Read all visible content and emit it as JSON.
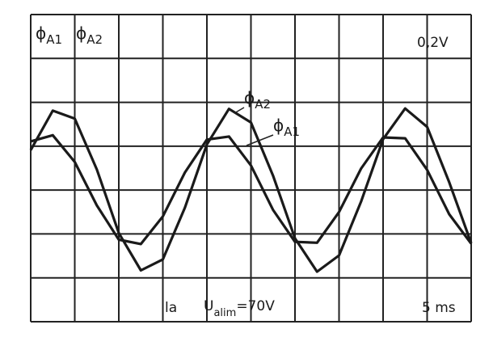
{
  "chart_data": {
    "type": "line",
    "x": [
      0,
      0.5,
      1,
      1.5,
      2,
      2.5,
      3,
      3.5,
      4,
      4.5,
      5,
      5.5,
      6,
      6.5,
      7,
      7.5,
      8,
      8.5,
      9,
      9.5,
      10
    ],
    "xlim": [
      0,
      10
    ],
    "ylim": [
      0,
      7
    ],
    "series": [
      {
        "name": "ϕ",
        "subscript": "A1",
        "color": "#1a1a1a",
        "values": [
          4.11,
          4.25,
          3.64,
          2.65,
          1.87,
          1.77,
          2.4,
          3.4,
          4.15,
          4.22,
          3.56,
          2.55,
          1.82,
          1.8,
          2.5,
          3.49,
          4.2,
          4.18,
          3.46,
          2.45,
          1.78
        ]
      },
      {
        "name": "ϕ",
        "subscript": "A2",
        "color": "#1a1a1a",
        "values": [
          3.91,
          4.81,
          4.63,
          3.47,
          2.02,
          1.17,
          1.42,
          2.6,
          4.04,
          4.85,
          4.54,
          3.33,
          1.9,
          1.14,
          1.51,
          2.74,
          4.16,
          4.86,
          4.44,
          3.18,
          1.79
        ]
      }
    ],
    "annotations": [
      [
        {
          "text": "0,2V"
        }
      ],
      [
        {
          "text": "la"
        }
      ],
      [
        {
          "text": "U"
        },
        {
          "text": "alim",
          "sub": true
        },
        {
          "text": "=70V"
        }
      ],
      [
        {
          "text": "5 ms"
        }
      ]
    ]
  }
}
